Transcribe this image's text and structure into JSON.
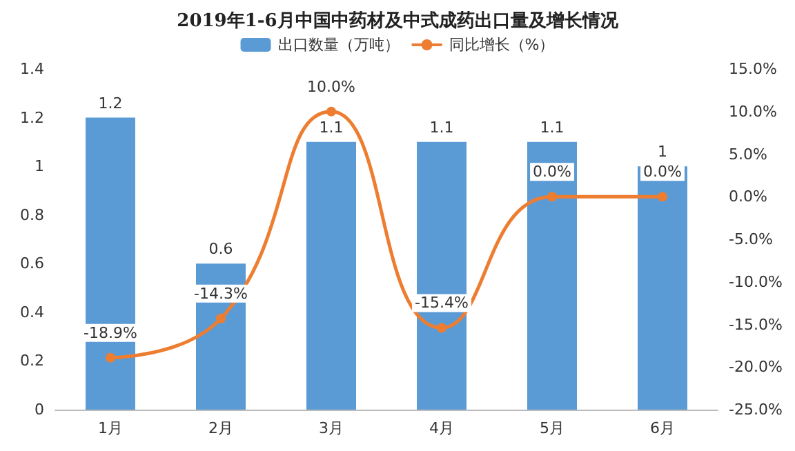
{
  "chart_data": {
    "type": "bar",
    "title": "2019年1-6月中国中药材及中式成药出口量及增长情况",
    "categories": [
      "1月",
      "2月",
      "3月",
      "4月",
      "5月",
      "6月"
    ],
    "series": [
      {
        "name": "出口数量（万吨）",
        "color": "#5b9bd5",
        "values": [
          1.2,
          0.6,
          1.1,
          1.1,
          1.1,
          1
        ],
        "data_labels": true
      },
      {
        "name": "同比增长（%）",
        "type": "line",
        "axis": "y2",
        "color": "#ed7d31",
        "values": [
          -18.9,
          -14.3,
          10.0,
          -15.4,
          0.0,
          0.0
        ],
        "value_labels": [
          "-18.9%",
          "-14.3%",
          "10.0%",
          "-15.4%",
          "0.0%",
          "0.0%"
        ],
        "marker": "circle"
      }
    ],
    "ylim": [
      0,
      1.4
    ],
    "yticks": [
      0,
      0.2,
      0.4,
      0.6,
      0.8,
      1,
      1.2,
      1.4
    ],
    "y2lim": [
      -25,
      15
    ],
    "y2ticks": [
      {
        "value": -25,
        "label": "-25.0%"
      },
      {
        "value": -20,
        "label": "-20.0%"
      },
      {
        "value": -15,
        "label": "-15.0%"
      },
      {
        "value": -10,
        "label": "-10.0%"
      },
      {
        "value": -5,
        "label": "-5.0%"
      },
      {
        "value": 0,
        "label": "0.0%"
      },
      {
        "value": 5,
        "label": "5.0%"
      },
      {
        "value": 10,
        "label": "10.0%"
      },
      {
        "value": 15,
        "label": "15.0%"
      }
    ],
    "legend": "top",
    "grid": false
  }
}
